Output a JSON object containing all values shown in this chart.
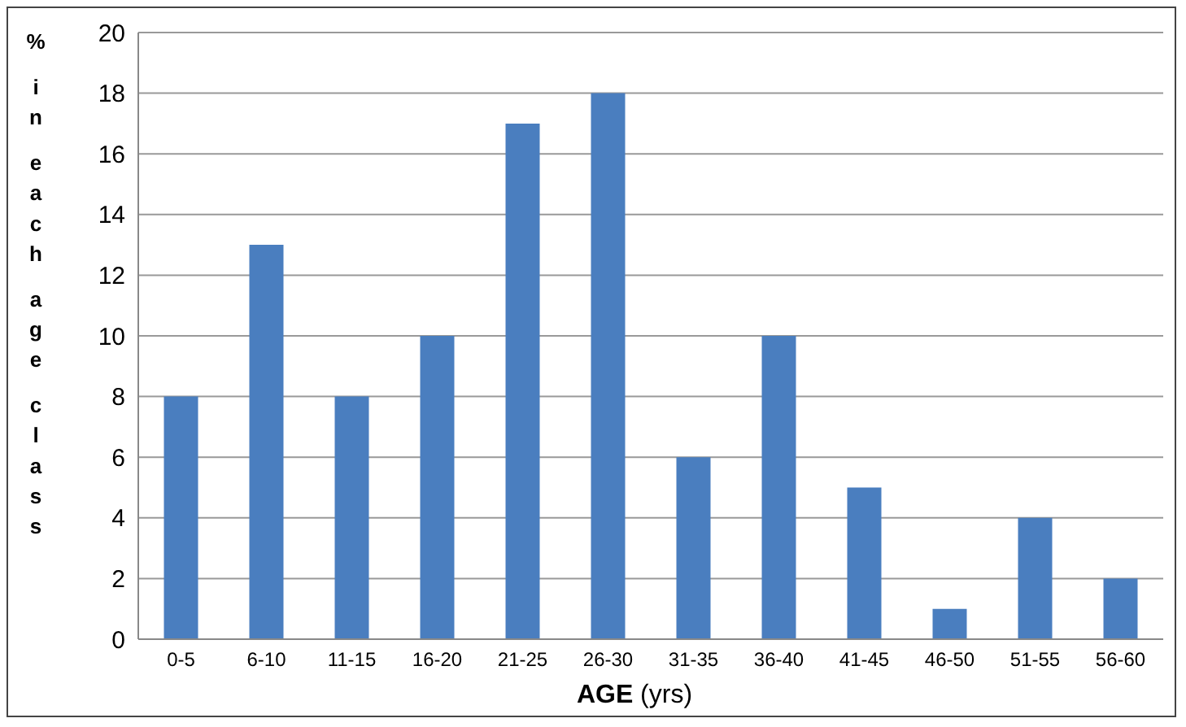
{
  "chart_data": {
    "type": "bar",
    "xlabel": "AGE (yrs)",
    "ylabel": "% in each age class",
    "categories": [
      "0-5",
      "6-10",
      "11-15",
      "16-20",
      "21-25",
      "26-30",
      "31-35",
      "36-40",
      "41-45",
      "46-50",
      "51-55",
      "56-60"
    ],
    "values": [
      8,
      13,
      8,
      10,
      17,
      18,
      6,
      10,
      5,
      1,
      4,
      2
    ],
    "color": "#4a7ebf",
    "ylim": [
      0,
      20
    ],
    "yticks": [
      0,
      2,
      4,
      6,
      8,
      10,
      12,
      14,
      16,
      18,
      20
    ],
    "grid": "y"
  }
}
